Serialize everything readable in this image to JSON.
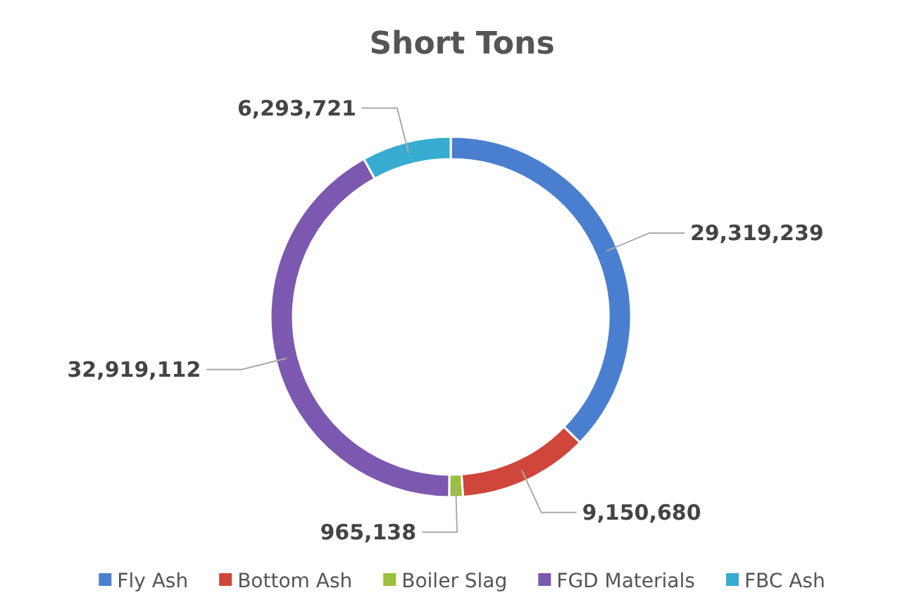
{
  "chart_data": {
    "type": "donut",
    "title": "Short Tons",
    "categories": [
      "Fly Ash",
      "Bottom Ash",
      "Boiler Slag",
      "FGD Materials",
      "FBC Ash"
    ],
    "values": [
      29319239,
      9150680,
      965138,
      32919112,
      6293721
    ],
    "colors": [
      "#4a7fd0",
      "#d0463a",
      "#9cbf3c",
      "#7c58b0",
      "#37acd0"
    ],
    "value_labels": [
      "29,319,239",
      "9,150,680",
      "965,138",
      "32,919,112",
      "6,293,721"
    ],
    "legend": "bottom"
  }
}
